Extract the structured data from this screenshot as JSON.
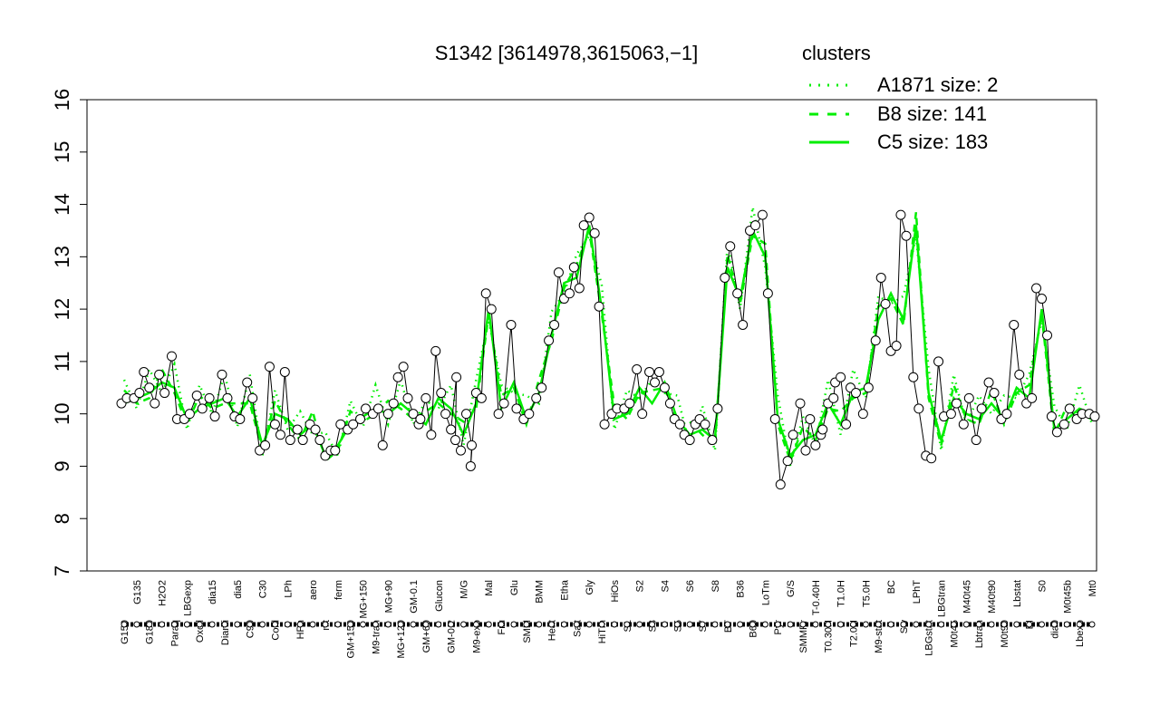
{
  "chart_data": {
    "type": "line",
    "title": "S1342 [3614978,3615063,−1]",
    "xlabel": "",
    "ylabel": "",
    "ylim": [
      7,
      16
    ],
    "yticks": [
      "7",
      "8",
      "9",
      "10",
      "11",
      "12",
      "13",
      "14",
      "15",
      "16"
    ],
    "grid": false,
    "legend": {
      "position": "top-right",
      "title": "clusters",
      "color": "#00ee00",
      "entries": [
        {
          "label": "A1871 size: 2",
          "style": "dotted"
        },
        {
          "label": "B8 size: 141",
          "style": "dashed"
        },
        {
          "label": "C5 size: 183",
          "style": "solid"
        }
      ]
    },
    "colors": {
      "line": "#00ee00",
      "points": "#000000",
      "gene": "#000000"
    },
    "categories": [
      "G150",
      "G135",
      "G180",
      "H2O2",
      "Paraq",
      "LBGexp",
      "Oxctl",
      "dia15",
      "Diami",
      "dia5",
      "C90",
      "C30",
      "Cold",
      "LPh",
      "HPh",
      "aero",
      "nit",
      "ferm",
      "GM+150",
      "MG+150",
      "M9-tran",
      "MG+90",
      "MG+120",
      "GM-0.1",
      "GM+60",
      "Glucon",
      "GM-0.2",
      "M/G",
      "M9-exp",
      "Mal",
      "Fru",
      "Glu",
      "SMM",
      "BMM",
      "Heat",
      "Etha",
      "Salt",
      "Gly",
      "HiTm",
      "HiOs",
      "S1",
      "S2",
      "S3",
      "S4",
      "S5",
      "S6",
      "S7",
      "S8",
      "BT",
      "B36",
      "B60",
      "LoTm",
      "Pyr",
      "G/S",
      "SMMPr",
      "T-0.40H",
      "T0.30H",
      "T1.0H",
      "T2.0H",
      "T5.0H",
      "M9-stat",
      "BC",
      "Sw",
      "LPhT",
      "LBGstat",
      "LBGtran",
      "M0t45",
      "M40t45",
      "Lbtran",
      "M40t90",
      "M0t90",
      "Lbstat",
      "BI",
      "S0",
      "dia0",
      "M0t45b",
      "Lbexp",
      "Mt0"
    ],
    "series": [
      {
        "values": [
          10.2,
          10.3,
          10.4,
          10.6,
          10.5,
          9.9,
          10.1,
          10.2,
          10.3,
          9.95,
          10.3,
          9.4,
          10.0,
          9.9,
          9.6,
          9.8,
          9.2,
          9.4,
          9.8,
          9.95,
          10.1,
          10.0,
          10.2,
          10.0,
          9.8,
          10.3,
          10.1,
          9.6,
          10.2,
          12.0,
          10.1,
          10.6,
          9.9,
          10.4,
          11.5,
          12.5,
          12.6,
          13.6,
          12.0,
          9.9,
          10.0,
          10.5,
          10.2,
          10.6,
          9.9,
          9.6,
          9.7,
          9.5,
          12.8,
          12.2,
          13.5,
          13.0,
          9.9,
          9.2,
          9.5,
          9.6,
          10.2,
          9.8,
          10.4,
          10.5,
          11.8,
          12.3,
          11.8,
          13.6,
          10.4,
          9.5,
          10.3,
          10.0,
          9.9,
          10.2,
          9.9,
          10.5,
          10.3,
          12.0,
          9.7,
          9.9,
          10.1,
          10.0
        ],
        "points": [
          [
            [
              10.2,
              10.3
            ]
          ],
          [
            [
              10.3,
              10.4
            ]
          ],
          [
            [
              10.8,
              10.5,
              10.2
            ]
          ],
          [
            [
              10.75,
              10.4
            ]
          ],
          [
            [
              11.1,
              9.9
            ]
          ],
          [
            [
              9.9,
              10.0
            ]
          ],
          [
            [
              10.35,
              10.1
            ]
          ],
          [
            [
              10.3,
              9.95
            ]
          ],
          [
            [
              10.75,
              10.3
            ]
          ],
          [
            [
              9.95,
              9.9
            ]
          ],
          [
            [
              10.6,
              10.3
            ]
          ],
          [
            [
              9.3,
              9.4
            ]
          ],
          [
            [
              10.9,
              9.8,
              9.6
            ]
          ],
          [
            [
              10.8,
              9.5
            ]
          ],
          [
            [
              9.7,
              9.5
            ]
          ],
          [
            [
              9.8,
              9.7
            ]
          ],
          [
            [
              9.5,
              9.2,
              9.3
            ]
          ],
          [
            [
              9.3,
              9.8
            ]
          ],
          [
            [
              9.7,
              9.8
            ]
          ],
          [
            [
              9.9,
              10.1
            ]
          ],
          [
            [
              10.0,
              10.1
            ]
          ],
          [
            [
              9.4,
              10.0,
              10.2
            ]
          ],
          [
            [
              10.7,
              10.9
            ]
          ],
          [
            [
              10.3,
              10.0,
              9.8
            ]
          ],
          [
            [
              9.9,
              10.3,
              9.6
            ]
          ],
          [
            [
              11.2,
              10.4
            ]
          ],
          [
            [
              10.0,
              9.7,
              10.7
            ]
          ],
          [
            [
              9.5,
              9.3,
              10.0,
              9.4
            ]
          ],
          [
            [
              9.0,
              10.4,
              10.3
            ]
          ],
          [
            [
              12.3,
              12.0
            ]
          ],
          [
            [
              10.0,
              10.2
            ]
          ],
          [
            [
              11.7,
              10.1
            ]
          ],
          [
            [
              9.9,
              10.0
            ]
          ],
          [
            [
              10.3,
              10.5
            ]
          ],
          [
            [
              11.4,
              11.7
            ]
          ],
          [
            [
              12.7,
              12.2,
              12.3
            ]
          ],
          [
            [
              12.8,
              12.4
            ]
          ],
          [
            [
              13.6,
              13.75,
              13.45
            ]
          ],
          [
            [
              12.05,
              9.8
            ]
          ],
          [
            [
              10.0,
              10.1
            ]
          ],
          [
            [
              10.1,
              10.2
            ]
          ],
          [
            [
              10.85,
              10.0
            ]
          ],
          [
            [
              10.8,
              10.6
            ]
          ],
          [
            [
              10.8,
              10.5,
              10.2
            ]
          ],
          [
            [
              9.9,
              9.8
            ]
          ],
          [
            [
              9.6,
              9.5,
              9.8
            ]
          ],
          [
            [
              9.9,
              9.8
            ]
          ],
          [
            [
              9.5,
              10.1
            ]
          ],
          [
            [
              12.6,
              13.2
            ]
          ],
          [
            [
              12.3,
              11.7
            ]
          ],
          [
            [
              13.5,
              13.6
            ]
          ],
          [
            [
              13.8,
              12.3
            ]
          ],
          [
            [
              9.9,
              8.65
            ]
          ],
          [
            [
              9.1,
              9.6
            ]
          ],
          [
            [
              10.2,
              9.3
            ]
          ],
          [
            [
              9.9,
              9.4,
              9.6
            ]
          ],
          [
            [
              9.7,
              10.2,
              10.3
            ]
          ],
          [
            [
              10.6,
              10.7,
              9.8
            ]
          ],
          [
            [
              10.5,
              10.4
            ]
          ],
          [
            [
              10.0,
              10.5
            ]
          ],
          [
            [
              11.4,
              12.6
            ]
          ],
          [
            [
              12.1,
              11.2,
              11.3
            ]
          ],
          [
            [
              13.8,
              13.4
            ]
          ],
          [
            [
              10.7,
              10.1
            ]
          ],
          [
            [
              9.2,
              9.15
            ]
          ],
          [
            [
              11.0,
              9.95
            ]
          ],
          [
            [
              10.0,
              10.2
            ]
          ],
          [
            [
              9.8,
              10.3
            ]
          ],
          [
            [
              9.5,
              10.1
            ]
          ],
          [
            [
              10.6,
              10.4
            ]
          ],
          [
            [
              9.9,
              10.0
            ]
          ],
          [
            [
              11.7,
              10.75
            ]
          ],
          [
            [
              10.2,
              10.3
            ]
          ],
          [
            [
              12.4,
              12.2,
              11.5
            ]
          ],
          [
            [
              9.95,
              9.65
            ]
          ],
          [
            [
              9.8,
              10.1
            ]
          ],
          [
            [
              9.9,
              10.0
            ]
          ],
          [
            [
              10.0,
              9.95
            ]
          ]
        ]
      }
    ]
  }
}
